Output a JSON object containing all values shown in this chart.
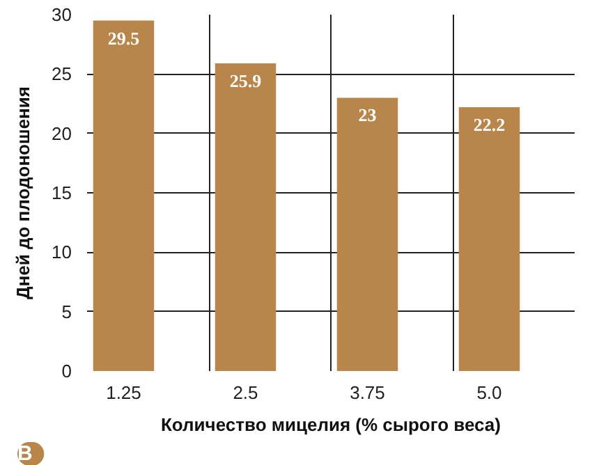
{
  "chart_data": {
    "type": "bar",
    "xlabel": "Количество мицелия (% сырого веса)",
    "ylabel": "Дней до плодоношения",
    "categories": [
      "1.25",
      "2.5",
      "3.75",
      "5.0"
    ],
    "values": [
      29.5,
      25.9,
      23,
      22.2
    ],
    "color": "#b8864a",
    "ylim": [
      0,
      30
    ],
    "yticks": [
      0,
      5,
      10,
      15,
      20,
      25,
      30
    ],
    "grid": true,
    "data_labels": true,
    "annotations": [
      "B"
    ]
  }
}
